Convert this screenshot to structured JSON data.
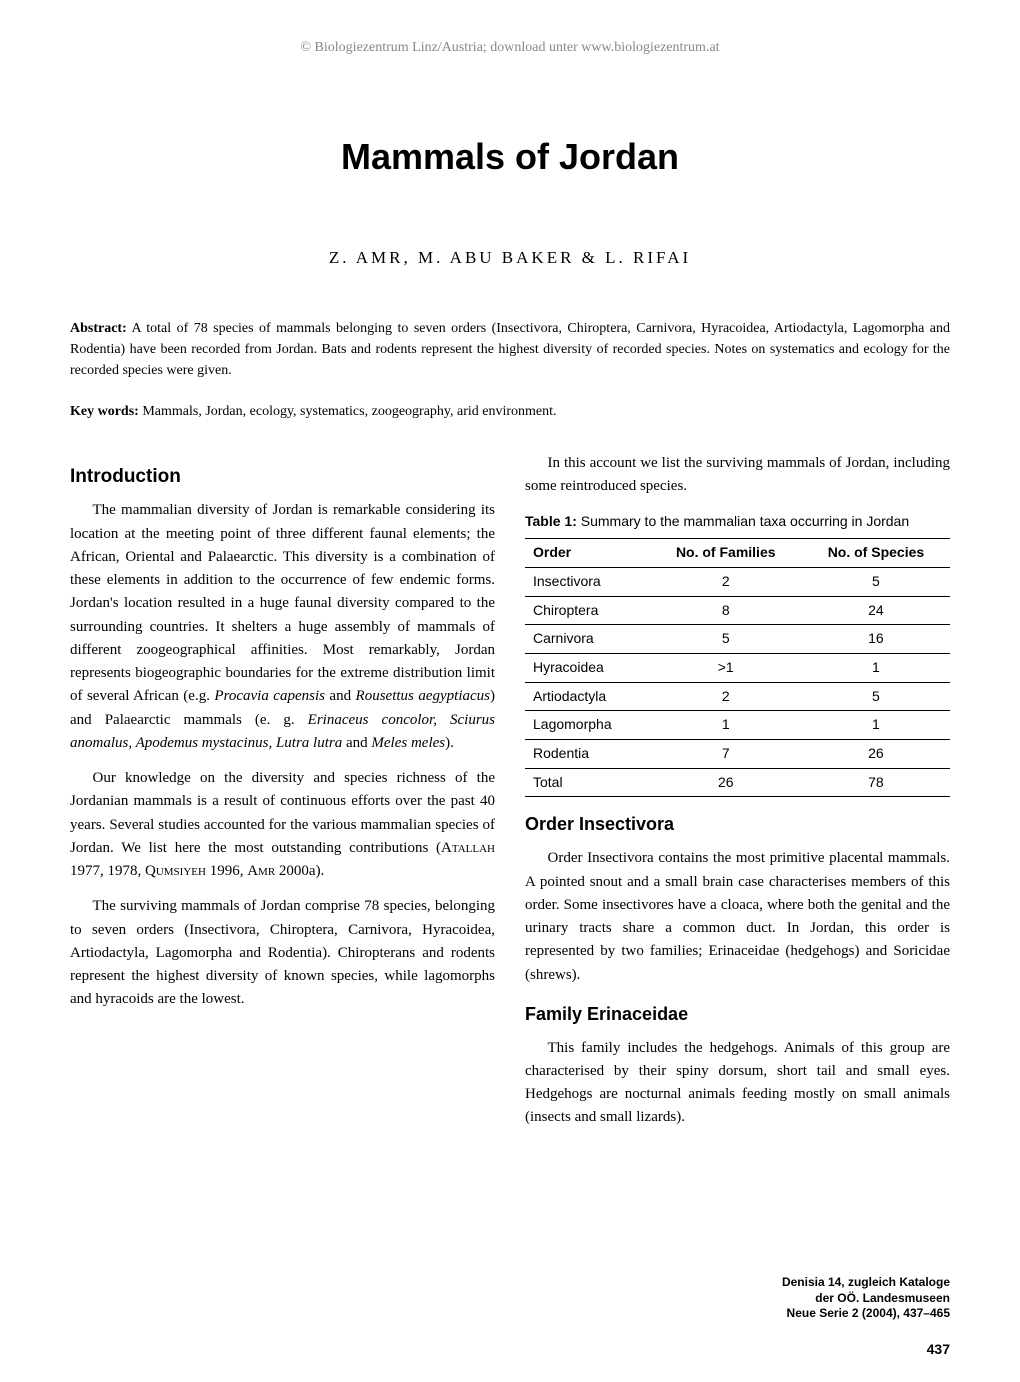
{
  "header_note": "© Biologiezentrum Linz/Austria; download unter www.biologiezentrum.at",
  "title": "Mammals of Jordan",
  "authors": "Z. AMR, M. ABU BAKER & L. RIFAI",
  "abstract_label": "Abstract:",
  "abstract_text": "A total of 78 species of mammals belonging to seven orders (Insectivora, Chiroptera, Carnivora, Hyracoidea, Artiodactyla, Lagomorpha and Rodentia) have been recorded from Jordan. Bats and rodents represent the highest diversity of recorded species. Notes on systematics and ecology for the recorded species were given.",
  "keywords_label": "Key words:",
  "keywords_text": "Mammals, Jordan, ecology, systematics, zoogeography, arid environment.",
  "left": {
    "h_intro": "Introduction",
    "p1a": "The mammalian diversity of Jordan is remarkable considering its location at the meeting point of three different faunal elements; the African, Oriental and Palaearctic. This diversity is a combination of these elements in addition to the occurrence of few endemic forms. Jordan's location resulted in a huge faunal diversity compared to the surrounding countries. It shelters a huge assembly of mammals of different zoogeographical affinities. Most remarkably, Jordan represents biogeographic boundaries for the extreme distribution limit of several African (e.g. ",
    "p1b_italic": "Procavia capensis",
    "p1c": " and ",
    "p1d_italic": "Rousettus aegyptiacus",
    "p1e": ") and Palaearctic mammals (e. g. ",
    "p1f_italic": "Erinaceus concolor, Sciurus anomalus, Apodemus mystacinus, Lutra lutra",
    "p1g": " and ",
    "p1h_italic": "Meles meles",
    "p1i": ").",
    "p2a": "Our knowledge on the diversity and species richness of the Jordanian mammals is a result of continuous efforts over the past 40 years. Several studies accounted for the various mammalian species of Jordan. We list here the most outstanding contributions (",
    "p2b_sc": "Atallah",
    "p2c": " 1977, 1978, ",
    "p2d_sc": "Qumsiyeh",
    "p2e": " 1996, ",
    "p2f_sc": "Amr",
    "p2g": " 2000a).",
    "p3": "The surviving mammals of Jordan comprise 78 species, belonging to seven orders (Insectivora, Chiroptera, Carnivora, Hyracoidea, Artiodactyla, Lagomorpha and Rodentia). Chiropterans and rodents represent the highest diversity of known species, while lagomorphs and hyracoids are the lowest."
  },
  "right": {
    "p1": "In this account we list the surviving mammals of Jordan, including some reintroduced species.",
    "table_caption_bold": "Table 1:",
    "table_caption": " Summary to the mammalian taxa occurring in Jordan",
    "table": {
      "columns": [
        "Order",
        "No. of Families",
        "No. of Species"
      ],
      "rows": [
        [
          "Insectivora",
          "2",
          "5"
        ],
        [
          "Chiroptera",
          "8",
          "24"
        ],
        [
          "Carnivora",
          "5",
          "16"
        ],
        [
          "Hyracoidea",
          ">1",
          "1"
        ],
        [
          "Artiodactyla",
          "2",
          "5"
        ],
        [
          "Lagomorpha",
          "1",
          "1"
        ],
        [
          "Rodentia",
          "7",
          "26"
        ],
        [
          "Total",
          "26",
          "78"
        ]
      ]
    },
    "h_order": "Order Insectivora",
    "p_order": "Order Insectivora contains the most primitive placental mammals. A pointed snout and a small brain case characterises members of this order. Some insectivores have a cloaca, where both the genital and the urinary tracts share a common duct. In Jordan, this order is represented by two families; Erinaceidae (hedgehogs) and Soricidae (shrews).",
    "h_family": "Family Erinaceidae",
    "p_family": "This family includes the hedgehogs. Animals of this group are characterised by their spiny dorsum, short tail and small eyes. Hedgehogs are nocturnal animals feeding mostly on small animals (insects and small lizards)."
  },
  "citation": {
    "line1": "Denisia 14, zugleich Kataloge",
    "line2": "der OÖ. Landesmuseen",
    "line3": "Neue Serie 2 (2004), 437–465"
  },
  "page_number": "437"
}
